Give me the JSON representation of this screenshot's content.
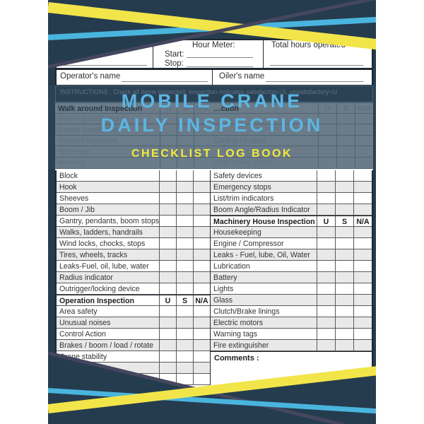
{
  "cover": {
    "colors": {
      "navy": "#253c4e",
      "overlay_navy": "#2b4254",
      "stripe_yellow": "#f2e54a",
      "stripe_cyan": "#49b5de",
      "stripe_slate": "#45475f",
      "title_blue": "#5cb6e4",
      "title_yellow": "#f3ea3d",
      "row_alt_grey": "#e9e9e9"
    },
    "header_form": {
      "hour_meter_label": "Hour Meter:",
      "start_label": "Start:",
      "stop_label": "Stop:",
      "total_hours_label": "Total hours operated",
      "operator_label": "Operator's name",
      "oiler_label": "Oiler's name"
    },
    "title": {
      "line1": "MOBILE CRANE",
      "line2": "DAILY INSPECTION",
      "line3": "CHECKLIST LOG BOOK"
    },
    "instructions_faint": "INSTRUCTIONS :  Check all items inspected, inspection indicates satisfactory=S, unsatisfactory=U",
    "column_headers": {
      "u": "U",
      "s": "S",
      "na": "N/A"
    },
    "faint_left_rows": [
      {
        "type": "header",
        "label": "Walk around Inspection"
      },
      {
        "type": "item",
        "label": "Safety guards and p"
      },
      {
        "type": "item",
        "label": "Carrier frame, rotat"
      },
      {
        "type": "item",
        "label": "General hardware"
      },
      {
        "type": "item",
        "label": "Wire rope"
      },
      {
        "type": "item",
        "label": "Heaving"
      }
    ],
    "faint_right_rows": [
      {
        "type": "header",
        "label": "…ction"
      },
      {
        "type": "item",
        "label": ""
      },
      {
        "type": "item",
        "label": ""
      },
      {
        "type": "item",
        "label": "Control / brakes"
      },
      {
        "type": "item",
        "label": ""
      },
      {
        "type": "item",
        "label": "Load rating charts"
      }
    ],
    "left_rows": [
      {
        "type": "item",
        "label": "Block"
      },
      {
        "type": "item",
        "label": "Hook"
      },
      {
        "type": "item",
        "label": "Sheeves"
      },
      {
        "type": "item",
        "label": "Boom / Jib"
      },
      {
        "type": "item",
        "label": "Gantry, pendants, boom stops"
      },
      {
        "type": "item",
        "label": "Walks, ladders, handrails"
      },
      {
        "type": "item",
        "label": "Wind locks, chocks, stops"
      },
      {
        "type": "item",
        "label": "Tires, wheels, tracks"
      },
      {
        "type": "item",
        "label": "Leaks-Fuel, oil, lube, water"
      },
      {
        "type": "item",
        "label": "Radius indicator"
      },
      {
        "type": "item",
        "label": "Outrigger/locking device"
      },
      {
        "type": "header",
        "label": "Operation Inspection"
      },
      {
        "type": "item",
        "label": "Area safety"
      },
      {
        "type": "item",
        "label": "Unusual noises"
      },
      {
        "type": "item",
        "label": "Control Action"
      },
      {
        "type": "item",
        "label": "Brakes / boom / load / rotate"
      },
      {
        "type": "item",
        "label": "Crane stability"
      },
      {
        "type": "empty",
        "label": ""
      },
      {
        "type": "empty",
        "label": ""
      }
    ],
    "right_rows": [
      {
        "type": "item",
        "label": "Safety devices"
      },
      {
        "type": "item",
        "label": "Emergency stops"
      },
      {
        "type": "item",
        "label": "List/trim indicators"
      },
      {
        "type": "item",
        "label": "Boom Angle/Radius Indicator"
      },
      {
        "type": "header",
        "label": "Machinery House Inspection"
      },
      {
        "type": "item",
        "label": "Housekeeping"
      },
      {
        "type": "item",
        "label": "Engine / Compressor"
      },
      {
        "type": "item",
        "label": "Leaks - Fuel, lube, Oil, Water"
      },
      {
        "type": "item",
        "label": "Lubrication"
      },
      {
        "type": "item",
        "label": "Battery"
      },
      {
        "type": "item",
        "label": "Lights"
      },
      {
        "type": "item",
        "label": "Glass"
      },
      {
        "type": "item",
        "label": "Clutch/Brake linings"
      },
      {
        "type": "item",
        "label": "Electric motors"
      },
      {
        "type": "item",
        "label": "Warning tags"
      },
      {
        "type": "item",
        "label": "Fire extinguisher"
      }
    ],
    "comments_label": "Comments :"
  }
}
